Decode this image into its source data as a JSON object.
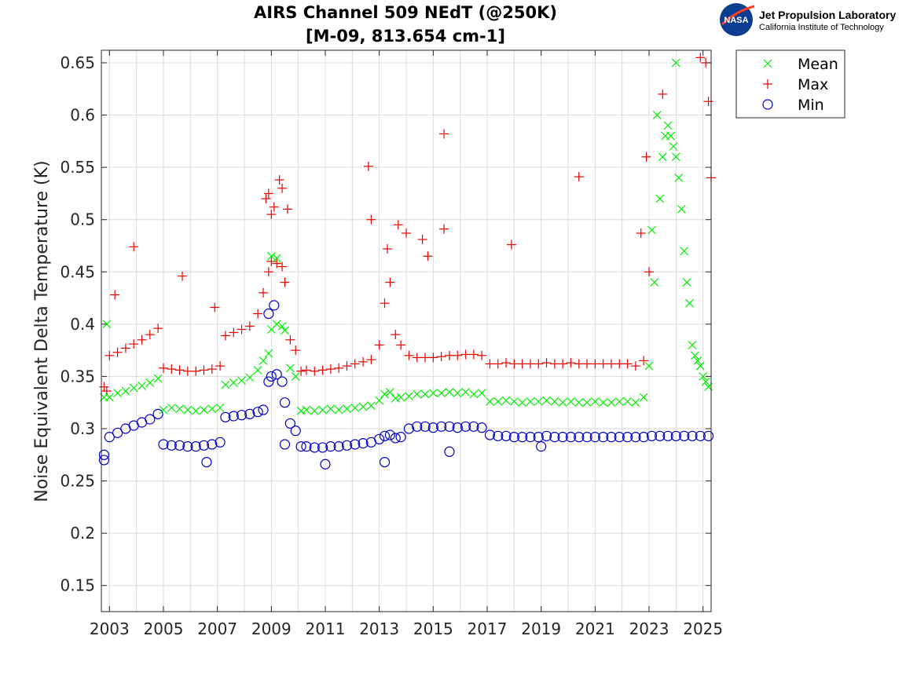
{
  "logo": {
    "nasa_mark": "NASA",
    "org_name": "Jet Propulsion Laboratory",
    "org_sub": "California Institute of Technology"
  },
  "colors": {
    "mean": "#00ee00",
    "max": "#ee0000",
    "min": "#0000cc",
    "grid": "#dcdcdc",
    "axis": "#262626"
  },
  "chart_data": {
    "type": "scatter",
    "title_lines": [
      "AIRS Channel 509 NEdT (@250K)",
      "[M-09, 813.654 cm-1]"
    ],
    "xlabel": "",
    "ylabel": "Noise Equivalent Delta Temperature (K)",
    "xlim": [
      2002.7,
      2025.3
    ],
    "ylim": [
      0.125,
      0.662
    ],
    "x_ticks": [
      2003,
      2005,
      2007,
      2009,
      2011,
      2013,
      2015,
      2017,
      2019,
      2021,
      2023,
      2025
    ],
    "x_tick_labels": [
      "2003",
      "2005",
      "2007",
      "2009",
      "2011",
      "2013",
      "2015",
      "2017",
      "2019",
      "2021",
      "2023",
      "2025"
    ],
    "x_minor_ticks": [
      2004,
      2006,
      2008,
      2010,
      2012,
      2014,
      2016,
      2018,
      2020,
      2022,
      2024
    ],
    "y_ticks": [
      0.15,
      0.2,
      0.25,
      0.3,
      0.35,
      0.4,
      0.45,
      0.5,
      0.55,
      0.6,
      0.65
    ],
    "y_tick_labels": [
      "0.15",
      "0.2",
      "0.25",
      "0.3",
      "0.35",
      "0.4",
      "0.45",
      "0.5",
      "0.55",
      "0.6",
      "0.65"
    ],
    "grid": true,
    "legend_position": "outside-top-right",
    "series": [
      {
        "name": "Mean",
        "marker": "x",
        "x": [
          2002.8,
          2003.0,
          2003.3,
          2003.6,
          2003.9,
          2004.2,
          2004.5,
          2004.8,
          2005.0,
          2005.3,
          2005.6,
          2005.9,
          2006.2,
          2006.5,
          2006.8,
          2007.1,
          2007.3,
          2007.6,
          2007.9,
          2008.2,
          2008.5,
          2008.7,
          2008.9,
          2009.0,
          2009.2,
          2009.4,
          2009.5,
          2009.7,
          2009.9,
          2010.1,
          2010.3,
          2010.6,
          2010.9,
          2011.2,
          2011.5,
          2011.8,
          2012.1,
          2012.4,
          2012.7,
          2013.0,
          2013.2,
          2013.4,
          2013.6,
          2013.8,
          2014.1,
          2014.4,
          2014.7,
          2015.0,
          2015.3,
          2015.6,
          2015.9,
          2016.2,
          2016.5,
          2016.8,
          2017.1,
          2017.4,
          2017.7,
          2018.0,
          2018.3,
          2018.6,
          2018.9,
          2019.2,
          2019.5,
          2019.8,
          2020.1,
          2020.4,
          2020.7,
          2021.0,
          2021.3,
          2021.6,
          2021.9,
          2022.2,
          2022.5,
          2022.8,
          2023.0,
          2023.2,
          2023.4,
          2023.5,
          2023.6,
          2023.7,
          2023.8,
          2023.9,
          2024.0,
          2024.1,
          2024.2,
          2024.3,
          2024.4,
          2024.5,
          2024.6,
          2024.7,
          2024.8,
          2024.9,
          2025.0,
          2025.1,
          2025.2,
          2002.9,
          2009.0,
          2009.2,
          2023.1,
          2023.3,
          2024.0
        ],
        "y": [
          0.33,
          0.33,
          0.334,
          0.336,
          0.339,
          0.341,
          0.344,
          0.348,
          0.318,
          0.32,
          0.319,
          0.318,
          0.317,
          0.318,
          0.319,
          0.32,
          0.342,
          0.344,
          0.346,
          0.349,
          0.356,
          0.365,
          0.372,
          0.395,
          0.4,
          0.398,
          0.394,
          0.358,
          0.35,
          0.317,
          0.318,
          0.317,
          0.318,
          0.319,
          0.318,
          0.319,
          0.32,
          0.321,
          0.322,
          0.327,
          0.333,
          0.335,
          0.329,
          0.33,
          0.331,
          0.333,
          0.333,
          0.334,
          0.334,
          0.335,
          0.334,
          0.335,
          0.333,
          0.334,
          0.326,
          0.326,
          0.327,
          0.326,
          0.325,
          0.326,
          0.326,
          0.327,
          0.326,
          0.325,
          0.326,
          0.325,
          0.325,
          0.326,
          0.325,
          0.325,
          0.326,
          0.326,
          0.325,
          0.33,
          0.36,
          0.44,
          0.52,
          0.56,
          0.58,
          0.59,
          0.58,
          0.57,
          0.56,
          0.54,
          0.51,
          0.47,
          0.44,
          0.42,
          0.38,
          0.37,
          0.365,
          0.36,
          0.35,
          0.345,
          0.34,
          0.4,
          0.465,
          0.463,
          0.49,
          0.6,
          0.65
        ]
      },
      {
        "name": "Max",
        "marker": "+",
        "x": [
          2002.8,
          2003.0,
          2003.3,
          2003.6,
          2003.9,
          2004.2,
          2004.5,
          2004.8,
          2005.0,
          2005.3,
          2005.6,
          2005.9,
          2006.2,
          2006.5,
          2006.8,
          2007.1,
          2007.3,
          2007.6,
          2007.9,
          2008.2,
          2008.5,
          2008.7,
          2008.9,
          2009.0,
          2009.2,
          2009.4,
          2009.5,
          2009.7,
          2009.9,
          2010.1,
          2010.3,
          2010.6,
          2010.9,
          2011.2,
          2011.5,
          2011.8,
          2012.1,
          2012.4,
          2012.7,
          2013.0,
          2013.2,
          2013.4,
          2013.6,
          2013.8,
          2014.1,
          2014.4,
          2014.7,
          2015.0,
          2015.3,
          2015.6,
          2015.9,
          2016.2,
          2016.5,
          2016.8,
          2017.1,
          2017.4,
          2017.7,
          2018.0,
          2018.3,
          2018.6,
          2018.9,
          2019.2,
          2019.5,
          2019.8,
          2020.1,
          2020.4,
          2020.7,
          2021.0,
          2021.3,
          2021.6,
          2021.9,
          2022.2,
          2022.5,
          2022.8,
          2003.2,
          2003.9,
          2005.7,
          2006.9,
          2008.8,
          2009.1,
          2009.4,
          2009.6,
          2012.6,
          2012.7,
          2013.3,
          2013.7,
          2014.0,
          2014.6,
          2014.8,
          2015.4,
          2015.4,
          2017.9,
          2020.4,
          2022.7,
          2022.9,
          2023.0,
          2023.5,
          2024.9,
          2025.1,
          2025.2,
          2025.3,
          2002.9,
          2008.9,
          2009.0,
          2009.3
        ],
        "y": [
          0.34,
          0.37,
          0.373,
          0.377,
          0.381,
          0.385,
          0.39,
          0.396,
          0.358,
          0.357,
          0.356,
          0.355,
          0.355,
          0.356,
          0.357,
          0.36,
          0.389,
          0.392,
          0.395,
          0.398,
          0.41,
          0.43,
          0.45,
          0.46,
          0.458,
          0.455,
          0.44,
          0.385,
          0.375,
          0.355,
          0.356,
          0.355,
          0.356,
          0.357,
          0.358,
          0.36,
          0.362,
          0.364,
          0.366,
          0.38,
          0.42,
          0.44,
          0.39,
          0.38,
          0.37,
          0.368,
          0.368,
          0.368,
          0.369,
          0.37,
          0.37,
          0.371,
          0.371,
          0.37,
          0.362,
          0.362,
          0.363,
          0.362,
          0.362,
          0.362,
          0.362,
          0.363,
          0.362,
          0.362,
          0.363,
          0.362,
          0.362,
          0.362,
          0.362,
          0.362,
          0.362,
          0.362,
          0.36,
          0.365,
          0.428,
          0.474,
          0.446,
          0.416,
          0.52,
          0.512,
          0.53,
          0.51,
          0.551,
          0.5,
          0.472,
          0.495,
          0.487,
          0.481,
          0.465,
          0.582,
          0.491,
          0.476,
          0.541,
          0.487,
          0.56,
          0.45,
          0.62,
          0.655,
          0.65,
          0.613,
          0.54,
          0.336,
          0.525,
          0.505,
          0.538
        ]
      },
      {
        "name": "Min",
        "marker": "o",
        "x": [
          2002.8,
          2003.0,
          2003.3,
          2003.6,
          2003.9,
          2004.2,
          2004.5,
          2004.8,
          2005.0,
          2005.3,
          2005.6,
          2005.9,
          2006.2,
          2006.5,
          2006.8,
          2007.1,
          2007.3,
          2007.6,
          2007.9,
          2008.2,
          2008.5,
          2008.7,
          2008.9,
          2009.0,
          2009.2,
          2009.4,
          2009.5,
          2009.7,
          2009.9,
          2010.1,
          2010.3,
          2010.6,
          2010.9,
          2011.2,
          2011.5,
          2011.8,
          2012.1,
          2012.4,
          2012.7,
          2013.0,
          2013.2,
          2013.4,
          2013.6,
          2013.8,
          2014.1,
          2014.4,
          2014.7,
          2015.0,
          2015.3,
          2015.6,
          2015.9,
          2016.2,
          2016.5,
          2016.8,
          2017.1,
          2017.4,
          2017.7,
          2018.0,
          2018.3,
          2018.6,
          2018.9,
          2019.2,
          2019.5,
          2019.8,
          2020.1,
          2020.4,
          2020.7,
          2021.0,
          2021.3,
          2021.6,
          2021.9,
          2022.2,
          2022.5,
          2022.8,
          2023.1,
          2023.4,
          2023.7,
          2024.0,
          2024.3,
          2024.6,
          2024.9,
          2025.2,
          2002.8,
          2006.6,
          2009.5,
          2011.0,
          2013.2,
          2015.6,
          2019.0,
          2008.9,
          2009.1
        ],
        "y": [
          0.275,
          0.292,
          0.296,
          0.3,
          0.303,
          0.306,
          0.309,
          0.314,
          0.285,
          0.284,
          0.284,
          0.283,
          0.283,
          0.284,
          0.285,
          0.287,
          0.311,
          0.312,
          0.313,
          0.314,
          0.316,
          0.318,
          0.345,
          0.35,
          0.352,
          0.345,
          0.325,
          0.305,
          0.298,
          0.283,
          0.283,
          0.282,
          0.282,
          0.283,
          0.283,
          0.284,
          0.285,
          0.286,
          0.287,
          0.29,
          0.293,
          0.294,
          0.291,
          0.292,
          0.3,
          0.302,
          0.302,
          0.301,
          0.302,
          0.302,
          0.301,
          0.302,
          0.302,
          0.301,
          0.294,
          0.293,
          0.293,
          0.292,
          0.292,
          0.292,
          0.292,
          0.293,
          0.292,
          0.292,
          0.292,
          0.292,
          0.292,
          0.292,
          0.292,
          0.292,
          0.292,
          0.292,
          0.292,
          0.292,
          0.293,
          0.293,
          0.293,
          0.293,
          0.293,
          0.293,
          0.293,
          0.293,
          0.27,
          0.268,
          0.285,
          0.266,
          0.268,
          0.278,
          0.283,
          0.41,
          0.418
        ]
      }
    ]
  }
}
